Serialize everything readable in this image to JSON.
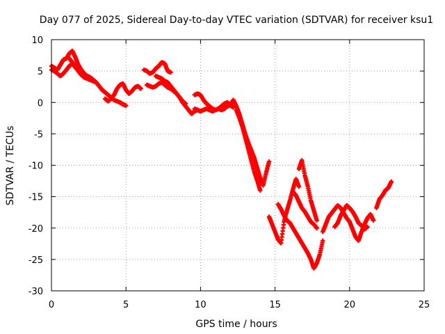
{
  "chart_data": {
    "type": "scatter",
    "title": "Day 077 of 2025, Sidereal Day-to-day VTEC variation (SDTVAR) for receiver ksu1",
    "xlabel": "GPS time / hours",
    "ylabel": "SDTVAR / TECUs",
    "xlim": [
      0,
      25
    ],
    "ylim": [
      -30,
      10
    ],
    "xticks": [
      "0",
      "5",
      "10",
      "15",
      "20",
      "25"
    ],
    "yticks": [
      "10",
      "5",
      "0",
      "-5",
      "-10",
      "-15",
      "-20",
      "-25",
      "-30"
    ],
    "grid": true,
    "marker": "plus",
    "color": "#ff0000",
    "series": [
      {
        "name": "trace-a",
        "x": [
          0.0,
          0.2,
          0.4,
          0.6,
          0.8,
          1.0,
          1.2,
          1.4,
          1.6,
          1.8,
          2.0,
          2.2,
          2.4,
          2.6,
          2.8,
          3.0,
          3.2,
          3.4,
          3.6,
          3.8,
          4.0,
          4.2,
          4.4,
          4.6,
          4.8,
          5.0
        ],
        "y": [
          5.8,
          5.5,
          5.2,
          6.0,
          6.8,
          7.0,
          7.8,
          8.2,
          7.2,
          6.0,
          5.2,
          4.6,
          4.2,
          4.0,
          3.6,
          3.2,
          2.6,
          2.0,
          1.6,
          1.2,
          0.8,
          0.4,
          0.2,
          0.0,
          -0.3,
          -0.5
        ]
      },
      {
        "name": "trace-b",
        "x": [
          0.0,
          0.2,
          0.4,
          0.6,
          0.8,
          1.0,
          1.2,
          1.4,
          1.6,
          1.8,
          2.0,
          2.2,
          2.4,
          2.6,
          2.8,
          3.0
        ],
        "y": [
          5.2,
          5.0,
          4.6,
          4.2,
          4.6,
          5.2,
          5.8,
          6.2,
          5.6,
          5.0,
          4.4,
          4.0,
          3.8,
          3.6,
          3.4,
          3.2
        ]
      },
      {
        "name": "trace-c",
        "x": [
          1.2,
          1.4,
          1.6,
          1.8,
          2.0,
          2.2,
          2.4,
          2.6
        ],
        "y": [
          7.0,
          6.4,
          5.8,
          5.2,
          4.8,
          4.4,
          4.0,
          3.8
        ]
      },
      {
        "name": "trace-d",
        "x": [
          3.6,
          3.8,
          4.0,
          4.2,
          4.4,
          4.6,
          4.8,
          5.0,
          5.2,
          5.4,
          5.6,
          5.8,
          6.0
        ],
        "y": [
          0.6,
          0.2,
          0.6,
          1.2,
          2.2,
          2.8,
          3.0,
          2.0,
          1.4,
          1.8,
          2.4,
          2.6,
          2.2
        ]
      },
      {
        "name": "trace-e",
        "x": [
          6.2,
          6.4,
          6.6,
          6.8,
          7.0,
          7.2,
          7.4,
          7.6,
          7.8,
          8.0
        ],
        "y": [
          5.2,
          5.0,
          4.6,
          4.8,
          5.4,
          5.8,
          6.4,
          6.2,
          5.0,
          4.8
        ]
      },
      {
        "name": "trace-f",
        "x": [
          6.4,
          6.6,
          6.8,
          7.0,
          7.2,
          7.4,
          7.6,
          7.8,
          8.0,
          8.2,
          8.4,
          8.6,
          8.8,
          9.0,
          9.2,
          9.4,
          9.6,
          9.8
        ],
        "y": [
          2.8,
          2.6,
          2.4,
          2.6,
          3.0,
          3.2,
          2.8,
          2.4,
          2.2,
          1.8,
          1.4,
          0.8,
          0.0,
          -0.6,
          -1.2,
          -1.8,
          -1.4,
          -1.2
        ]
      },
      {
        "name": "trace-g",
        "x": [
          7.0,
          7.2,
          7.4,
          7.6,
          7.8,
          8.0,
          8.2,
          8.4,
          8.6,
          8.8,
          9.0
        ],
        "y": [
          4.2,
          4.0,
          3.8,
          3.4,
          3.2,
          2.6,
          2.0,
          1.4,
          0.8,
          0.2,
          -0.2
        ]
      },
      {
        "name": "trace-h",
        "x": [
          9.6,
          9.8,
          10.0,
          10.2,
          10.4,
          10.6,
          10.8,
          11.0,
          11.2,
          11.4,
          11.6,
          11.8,
          12.0,
          12.2
        ],
        "y": [
          1.2,
          1.4,
          1.2,
          0.4,
          -0.2,
          -0.6,
          -1.0,
          -1.2,
          -1.0,
          -0.6,
          -0.2,
          0.0,
          -0.4,
          -0.8
        ]
      },
      {
        "name": "trace-i",
        "x": [
          9.6,
          9.8,
          10.0,
          10.2,
          10.4,
          10.6,
          10.8,
          11.0,
          11.2,
          11.4,
          11.6,
          11.8,
          12.0
        ],
        "y": [
          -1.0,
          -1.2,
          -1.4,
          -1.2,
          -1.0,
          -1.2,
          -1.4,
          -1.2,
          -1.0,
          -1.2,
          -1.0,
          -0.6,
          -0.4
        ]
      },
      {
        "name": "trace-j",
        "x": [
          12.0,
          12.2,
          12.4,
          12.6,
          12.8,
          13.0,
          13.2,
          13.4,
          13.6,
          13.8,
          14.0,
          14.2,
          14.4,
          14.6
        ],
        "y": [
          -0.4,
          0.4,
          -0.6,
          -1.8,
          -3.4,
          -5.0,
          -6.4,
          -7.6,
          -8.8,
          -10.4,
          -12.0,
          -13.2,
          -11.2,
          -9.4
        ]
      },
      {
        "name": "trace-k",
        "x": [
          12.4,
          12.6,
          12.8,
          13.0,
          13.2,
          13.4,
          13.6,
          13.8,
          14.0
        ],
        "y": [
          -1.2,
          -2.4,
          -3.8,
          -5.6,
          -7.4,
          -9.2,
          -11.0,
          -12.4,
          -14.0
        ]
      },
      {
        "name": "trace-l",
        "x": [
          14.6,
          14.8,
          15.0,
          15.2,
          15.4,
          15.6,
          15.8,
          16.0,
          16.2,
          16.4,
          16.6
        ],
        "y": [
          -18.2,
          -19.4,
          -20.6,
          -21.8,
          -22.4,
          -19.0,
          -17.2,
          -15.6,
          -13.8,
          -12.2,
          -13.4
        ]
      },
      {
        "name": "trace-m",
        "x": [
          15.2,
          15.4,
          15.6,
          15.8,
          16.0,
          16.2,
          16.4,
          16.6,
          16.8,
          17.0,
          17.2,
          17.4,
          17.6,
          17.8,
          18.0,
          18.2
        ],
        "y": [
          -16.2,
          -17.0,
          -18.0,
          -18.8,
          -19.2,
          -20.0,
          -20.8,
          -21.6,
          -22.4,
          -23.2,
          -24.0,
          -25.0,
          -26.4,
          -25.6,
          -24.2,
          -22.0
        ]
      },
      {
        "name": "trace-n",
        "x": [
          16.6,
          16.8,
          17.0,
          17.2,
          17.4,
          17.6,
          17.8
        ],
        "y": [
          -10.6,
          -9.2,
          -11.6,
          -13.4,
          -15.6,
          -17.2,
          -18.8
        ]
      },
      {
        "name": "trace-o",
        "x": [
          16.2,
          16.4,
          16.6,
          16.8,
          17.0,
          17.2,
          17.4,
          17.6,
          17.8
        ],
        "y": [
          -14.2,
          -14.8,
          -15.8,
          -16.8,
          -17.4,
          -18.2,
          -19.0,
          -19.4,
          -20.0
        ]
      },
      {
        "name": "trace-p",
        "x": [
          18.2,
          18.4,
          18.6,
          18.8,
          19.0,
          19.2,
          19.4,
          19.6,
          19.8,
          20.0,
          20.2,
          20.4,
          20.6,
          20.8,
          21.0,
          21.2,
          21.4,
          21.6
        ],
        "y": [
          -20.6,
          -19.4,
          -18.2,
          -17.6,
          -17.0,
          -16.4,
          -16.8,
          -17.6,
          -18.4,
          -19.0,
          -20.2,
          -21.4,
          -22.0,
          -20.6,
          -19.4,
          -18.4,
          -17.8,
          -18.8
        ]
      },
      {
        "name": "trace-q",
        "x": [
          19.0,
          19.2,
          19.4,
          19.6,
          19.8,
          20.0,
          20.2,
          20.4,
          20.6,
          20.8,
          21.0,
          21.2
        ],
        "y": [
          -19.8,
          -19.2,
          -18.0,
          -17.2,
          -16.4,
          -16.8,
          -17.4,
          -18.2,
          -19.2,
          -19.6,
          -20.2,
          -19.8
        ]
      },
      {
        "name": "trace-r",
        "x": [
          21.8,
          22.0,
          22.2,
          22.4,
          22.6,
          22.8
        ],
        "y": [
          -16.8,
          -15.4,
          -14.8,
          -14.0,
          -13.6,
          -12.6
        ]
      }
    ]
  }
}
